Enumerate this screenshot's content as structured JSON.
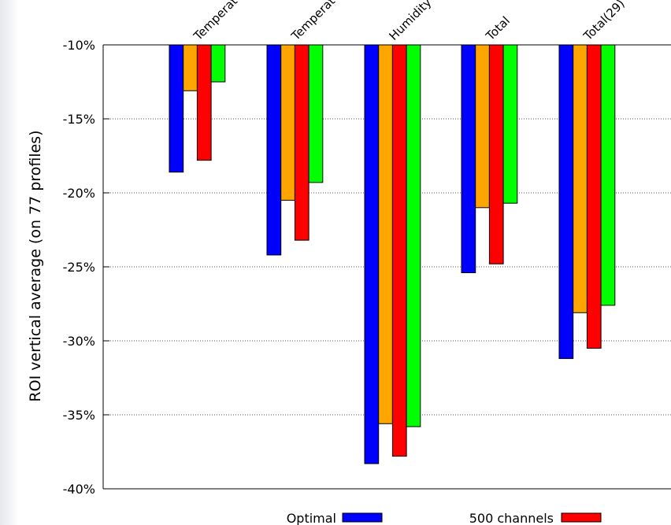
{
  "chart_data": {
    "type": "bar",
    "ylabel": "ROI vertical average (on 77 profiles)",
    "categories": [
      "Temperat",
      "Temperat",
      "Humidity",
      "Total",
      "Total(29)"
    ],
    "ylim": [
      -40,
      -10
    ],
    "yticks": [
      -10,
      -15,
      -20,
      -25,
      -30,
      -35,
      -40
    ],
    "ytick_labels": [
      "-10%",
      "-15%",
      "-20%",
      "-25%",
      "-30%",
      "-35%",
      "-40%"
    ],
    "grid": "horizontal dotted",
    "series": [
      {
        "name": "Optimal",
        "color": "#0000ff",
        "values": [
          -18.6,
          -24.2,
          -38.3,
          -25.4,
          -31.2
        ]
      },
      {
        "color": "#ffa500",
        "values": [
          -13.1,
          -20.5,
          -35.6,
          -21.0,
          -28.1
        ]
      },
      {
        "name": "500 channels",
        "color": "#ff0000",
        "values": [
          -17.8,
          -23.2,
          -37.8,
          -24.8,
          -30.5
        ]
      },
      {
        "color": "#00ff00",
        "values": [
          -12.5,
          -19.3,
          -35.8,
          -20.7,
          -27.6
        ]
      }
    ],
    "legend": {
      "placement": "bottom",
      "visible_entries": [
        "Optimal",
        "500 channels"
      ]
    }
  }
}
